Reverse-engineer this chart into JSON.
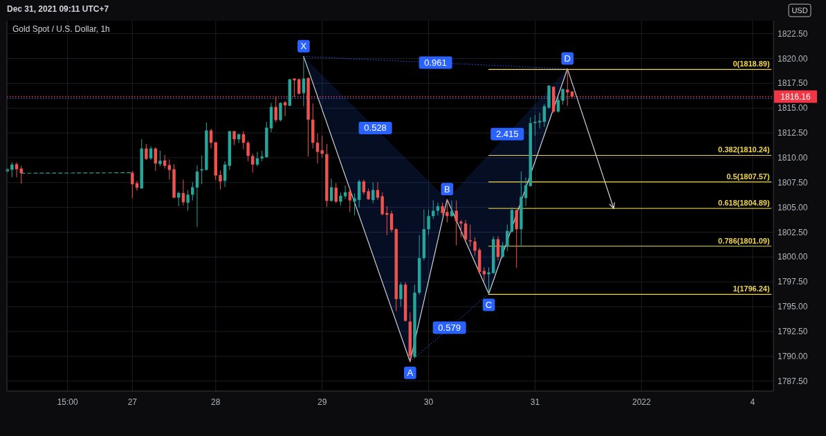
{
  "chart_data": {
    "type": "candlestick",
    "title": "Gold Spot / U.S. Dollar, 1h",
    "ylabel": "USD",
    "annotations": [
      "Dec 31, 2021 09:11 UTC+7",
      {
        "text": "X",
        "y": 1820.2
      },
      {
        "text": "A",
        "y": 1789.45
      },
      {
        "text": "B",
        "y": 1805.8
      },
      {
        "text": "C",
        "y": 1796.3
      },
      {
        "text": "D",
        "y": 1818.95
      },
      "0.961",
      "0.528",
      "0.579",
      "2.415"
    ],
    "categories": [
      null,
      null,
      null,
      null,
      null,
      null,
      null,
      null,
      null,
      null,
      null,
      null,
      null,
      "15:00",
      null,
      null,
      null,
      null,
      null,
      null,
      null,
      null,
      null,
      null,
      null,
      null,
      null,
      "27",
      null,
      null,
      null,
      null,
      null,
      null,
      null,
      null,
      null,
      null,
      null,
      null,
      null,
      null,
      null,
      null,
      null,
      "28",
      null,
      null,
      null,
      null,
      null,
      null,
      null,
      null,
      null,
      null,
      null,
      null,
      null,
      null,
      null,
      null,
      null,
      null,
      null,
      null,
      null,
      null,
      "29",
      null,
      null,
      null,
      null,
      null,
      null,
      null,
      null,
      null,
      null,
      null,
      null,
      null,
      null,
      null,
      null,
      null,
      null,
      null,
      null,
      null,
      null,
      "30",
      null,
      null,
      null,
      null,
      null,
      null,
      null,
      null,
      null,
      null,
      null,
      null,
      null,
      null,
      null,
      null,
      null,
      null,
      null,
      null,
      null,
      null,
      "31",
      null,
      null,
      null,
      null,
      null,
      null,
      null,
      null,
      null,
      null,
      null,
      null,
      null,
      null,
      null,
      null,
      null,
      null,
      null,
      null,
      null,
      null,
      "2022",
      null,
      null,
      null,
      null,
      null,
      null,
      null,
      null,
      null,
      null,
      null,
      null,
      null,
      null,
      null,
      null,
      null,
      null,
      null,
      null,
      null,
      null,
      null,
      "4",
      null,
      null,
      null,
      null
    ],
    "ohlc": [
      [
        1808.63,
        1808.98,
        1808.49,
        1808.84
      ],
      [
        1808.79,
        1809.54,
        1808.03,
        1809.31
      ],
      [
        1809.35,
        1809.54,
        1808.03,
        1808.84
      ],
      [
        1808.91,
        1809.19,
        1807.38,
        1808.44
      ],
      null,
      null,
      null,
      null,
      null,
      null,
      null,
      null,
      null,
      null,
      null,
      null,
      null,
      null,
      null,
      null,
      null,
      null,
      null,
      null,
      null,
      null,
      null,
      [
        1808.49,
        1808.68,
        1805.93,
        1807.33
      ],
      [
        1807.44,
        1807.68,
        1806.68,
        1806.98
      ],
      [
        1806.91,
        1811.86,
        1806.87,
        1810.93
      ],
      [
        1810.93,
        1811.4,
        1809.77,
        1809.88
      ],
      [
        1809.94,
        1811.16,
        1809.77,
        1810.93
      ],
      [
        1810.93,
        1811.05,
        1808.68,
        1809.42
      ],
      [
        1809.36,
        1810.7,
        1809.14,
        1809.7
      ],
      [
        1809.73,
        1810.29,
        1808.91,
        1809.19
      ],
      [
        1809.26,
        1809.82,
        1807.8,
        1808.77
      ],
      [
        1808.84,
        1809.35,
        1805.93,
        1805.98
      ],
      [
        1805.98,
        1806.59,
        1805.12,
        1806.45
      ],
      [
        1806.45,
        1807.8,
        1805.19,
        1805.52
      ],
      [
        1805.47,
        1806.75,
        1804.66,
        1806.28
      ],
      [
        1806.28,
        1807.57,
        1805.7,
        1807.03
      ],
      [
        1807.0,
        1809.24,
        1803.03,
        1808.61
      ],
      [
        1808.72,
        1810.24,
        1807.33,
        1808.84
      ],
      [
        1808.77,
        1813.56,
        1808.72,
        1812.75
      ],
      [
        1812.75,
        1812.91,
        1810.93,
        1811.51
      ],
      [
        1811.56,
        1811.56,
        1807.75,
        1808.21
      ],
      [
        1808.26,
        1808.72,
        1806.8,
        1807.61
      ],
      [
        1807.68,
        1809.66,
        1807.05,
        1809.31
      ],
      [
        1809.19,
        1812.68,
        1808.79,
        1812.68
      ],
      [
        1812.68,
        1812.68,
        1811.28,
        1811.86
      ],
      [
        1811.86,
        1812.38,
        1811.47,
        1812.38
      ],
      [
        1812.38,
        1812.68,
        1810.86,
        1811.51
      ],
      [
        1811.51,
        1811.7,
        1809.66,
        1810.19
      ],
      [
        1810.17,
        1810.4,
        1808.49,
        1809.31
      ],
      [
        1809.31,
        1810.59,
        1809.14,
        1809.94
      ],
      [
        1809.94,
        1810.7,
        1809.66,
        1810.12
      ],
      [
        1810.05,
        1813.61,
        1810.0,
        1813.03
      ],
      [
        1812.96,
        1815.52,
        1812.56,
        1815.12
      ],
      [
        1815.12,
        1816.16,
        1813.56,
        1813.79
      ],
      [
        1813.79,
        1815.59,
        1813.65,
        1815.52
      ],
      [
        1815.59,
        1815.7,
        1814.19,
        1815.28
      ],
      [
        1815.24,
        1817.91,
        1815.19,
        1817.91
      ],
      [
        1817.98,
        1817.98,
        1816.12,
        1817.79
      ],
      [
        1817.91,
        1817.98,
        1816.4,
        1816.44
      ],
      [
        1816.51,
        1820.2,
        1815.19,
        1817.98
      ],
      [
        1818.03,
        1818.1,
        1810.12,
        1813.84
      ],
      [
        1813.84,
        1815.47,
        1810.93,
        1811.51
      ],
      [
        1811.51,
        1812.45,
        1809.42,
        1810.59
      ],
      [
        1810.75,
        1812.21,
        1810.0,
        1810.4
      ],
      [
        1810.36,
        1811.4,
        1805.05,
        1805.65
      ],
      [
        1805.65,
        1807.91,
        1805.58,
        1807.03
      ],
      [
        1806.98,
        1807.45,
        1805.42,
        1805.58
      ],
      [
        1805.58,
        1806.52,
        1805.19,
        1806.17
      ],
      [
        1806.12,
        1807.22,
        1805.82,
        1806.52
      ],
      [
        1806.59,
        1806.98,
        1804.54,
        1805.7
      ],
      [
        1805.58,
        1806.4,
        1804.19,
        1805.93
      ],
      [
        1805.75,
        1807.8,
        1805.0,
        1807.61
      ],
      [
        1807.61,
        1807.8,
        1806.28,
        1806.52
      ],
      [
        1806.63,
        1806.91,
        1805.75,
        1805.82
      ],
      [
        1805.75,
        1807.52,
        1805.42,
        1806.75
      ],
      [
        1806.75,
        1807.52,
        1805.75,
        1805.98
      ],
      [
        1806.12,
        1806.52,
        1804.19,
        1804.31
      ],
      [
        1804.43,
        1805.12,
        1802.22,
        1804.26
      ],
      [
        1804.38,
        1804.66,
        1802.5,
        1802.73
      ],
      [
        1802.8,
        1802.91,
        1794.55,
        1795.76
      ],
      [
        1795.76,
        1797.45,
        1795.0,
        1797.22
      ],
      [
        1797.22,
        1797.45,
        1793.5,
        1793.57
      ],
      [
        1793.5,
        1794.43,
        1789.43,
        1790.01
      ],
      [
        1789.94,
        1797.22,
        1789.78,
        1796.41
      ],
      [
        1796.41,
        1802.22,
        1796.18,
        1799.89
      ],
      [
        1799.89,
        1804.78,
        1799.66,
        1802.8
      ],
      [
        1802.8,
        1804.78,
        1802.22,
        1804.12
      ],
      [
        1804.12,
        1805.7,
        1803.84,
        1804.66
      ],
      [
        1804.66,
        1805.47,
        1804.19,
        1805.12
      ],
      [
        1805.12,
        1805.47,
        1804.19,
        1804.43
      ],
      [
        1804.54,
        1805.82,
        1803.49,
        1804.12
      ],
      [
        1804.12,
        1805.7,
        1804.03,
        1804.66
      ],
      [
        1804.66,
        1805.7,
        1801.17,
        1803.61
      ],
      [
        1803.57,
        1803.73,
        1801.99,
        1803.38
      ],
      [
        1803.38,
        1803.73,
        1801.52,
        1801.75
      ],
      [
        1801.68,
        1803.26,
        1801.05,
        1801.57
      ],
      [
        1801.57,
        1801.99,
        1800.12,
        1800.63
      ],
      [
        1800.71,
        1800.94,
        1798.31,
        1798.5
      ],
      [
        1798.61,
        1798.96,
        1797.57,
        1798.26
      ],
      [
        1798.26,
        1798.96,
        1796.3,
        1798.45
      ],
      [
        1798.38,
        1802.1,
        1798.31,
        1801.8
      ],
      [
        1801.8,
        1802.1,
        1799.66,
        1800.01
      ],
      [
        1800.01,
        1801.52,
        1799.89,
        1801.17
      ],
      [
        1801.05,
        1803.26,
        1800.59,
        1802.63
      ],
      [
        1802.56,
        1805.0,
        1802.45,
        1804.73
      ],
      [
        1804.73,
        1804.78,
        1798.92,
        1802.8
      ],
      [
        1802.8,
        1808.61,
        1801.05,
        1806.05
      ],
      [
        1805.93,
        1808.03,
        1805.12,
        1807.22
      ],
      [
        1807.15,
        1814.07,
        1807.1,
        1813.49
      ],
      [
        1813.49,
        1814.3,
        1812.21,
        1813.61
      ],
      [
        1813.56,
        1814.54,
        1812.96,
        1813.72
      ],
      [
        1813.61,
        1815.42,
        1813.1,
        1815.19
      ],
      [
        1815.05,
        1817.33,
        1814.96,
        1817.26
      ],
      [
        1817.14,
        1817.21,
        1814.54,
        1814.65
      ],
      [
        1814.65,
        1816.16,
        1814.54,
        1815.82
      ],
      [
        1815.75,
        1816.98,
        1815.35,
        1816.91
      ],
      [
        1816.86,
        1818.95,
        1815.24,
        1816.58
      ],
      [
        1816.67,
        1816.74,
        1816.05,
        1816.16
      ],
      null,
      null,
      null,
      null,
      null,
      null,
      null,
      null,
      null,
      null,
      null,
      null,
      null,
      null,
      null,
      null,
      null,
      null,
      null,
      null,
      null,
      null,
      null,
      null,
      null,
      null,
      null,
      null,
      null,
      null,
      null,
      null,
      null,
      null,
      null,
      null,
      null,
      null,
      null,
      null,
      null,
      null,
      null
    ],
    "colors": [
      "#26a69a",
      "#26a69a",
      "#ef5350",
      "#ef5350",
      null,
      null,
      null,
      null,
      null,
      null,
      null,
      null,
      null,
      null,
      null,
      null,
      null,
      null,
      null,
      null,
      null,
      null,
      null,
      null,
      null,
      null,
      null,
      "#ef5350",
      "#ef5350",
      "#26a69a",
      "#ef5350",
      "#26a69a",
      "#ef5350",
      "#26a69a",
      "#ef5350",
      "#ef5350",
      "#ef5350",
      "#26a69a",
      "#ef5350",
      "#26a69a",
      "#26a69a",
      "#26a69a",
      "#26a69a",
      "#26a69a",
      "#ef5350",
      "#ef5350",
      "#ef5350",
      "#26a69a",
      "#26a69a",
      "#ef5350",
      "#26a69a",
      "#ef5350",
      "#ef5350",
      "#ef5350",
      "#26a69a",
      "#26a69a",
      "#26a69a",
      "#26a69a",
      "#ef5350",
      "#26a69a",
      "#ef5350",
      "#26a69a",
      "#ef5350",
      "#ef5350",
      "#26a69a",
      "#ef5350",
      "#ef5350",
      "#ef5350",
      "#ef5350",
      "#ef5350",
      "#26a69a",
      "#ef5350",
      "#26a69a",
      "#26a69a",
      "#ef5350",
      "#26a69a",
      "#26a69a",
      "#ef5350",
      "#ef5350",
      "#26a69a",
      "#ef5350",
      "#ef5350",
      "#ef5350",
      "#ef5350",
      "#ef5350",
      "#26a69a",
      "#ef5350",
      "#ef5350",
      "#26a69a",
      "#26a69a",
      "#26a69a",
      "#26a69a",
      "#26a69a",
      "#26a69a",
      "#ef5350",
      "#ef5350",
      "#26a69a",
      "#ef5350",
      "#ef5350",
      "#ef5350",
      "#ef5350",
      "#ef5350",
      "#ef5350",
      "#ef5350",
      "#26a69a",
      "#26a69a",
      "#ef5350",
      "#26a69a",
      "#26a69a",
      "#26a69a",
      "#ef5350",
      "#26a69a",
      "#26a69a",
      "#26a69a",
      "#26a69a",
      "#26a69a",
      "#26a69a",
      "#26a69a",
      "#ef5350",
      "#26a69a",
      "#26a69a",
      "#ef5350",
      "#ef5350",
      null,
      null,
      null,
      null,
      null,
      null,
      null,
      null,
      null,
      null,
      null,
      null,
      null,
      null,
      null,
      null,
      null,
      null,
      null,
      null,
      null,
      null,
      null,
      null,
      null,
      null,
      null,
      null,
      null,
      null,
      null,
      null,
      null,
      null,
      null,
      null,
      null,
      null,
      null,
      null,
      null,
      null,
      null
    ],
    "series": [
      {
        "type": "line",
        "color": "#26a69a",
        "line_style": "dashed",
        "values": [
          null,
          null,
          null,
          1808.44,
          null,
          null,
          null,
          null,
          null,
          null,
          null,
          null,
          null,
          null,
          null,
          null,
          null,
          null,
          null,
          null,
          null,
          null,
          null,
          null,
          null,
          null,
          null,
          1808.49,
          null,
          null,
          null,
          null,
          null,
          null,
          null,
          null,
          null,
          null,
          null,
          null,
          null,
          null,
          null,
          null,
          null,
          null,
          null,
          null,
          null,
          null,
          null,
          null,
          null,
          null,
          null,
          null,
          null,
          null,
          null,
          null,
          null,
          null,
          null,
          null,
          null,
          null,
          null,
          null,
          null,
          null,
          null,
          null,
          null,
          null,
          null,
          null,
          null,
          null,
          null,
          null,
          null,
          null,
          null,
          null,
          null,
          null,
          null,
          null,
          null,
          null,
          null,
          null,
          null,
          null,
          null,
          null,
          null,
          null,
          null,
          null,
          null,
          null,
          null,
          null,
          null,
          null,
          null,
          null,
          null,
          null,
          null,
          null,
          null,
          null,
          null,
          null,
          null,
          null,
          null,
          null,
          null,
          null,
          null,
          null,
          null,
          null,
          null,
          null,
          null,
          null,
          null,
          null,
          null,
          null,
          null,
          null,
          null,
          null,
          null,
          null,
          null,
          null,
          null,
          null,
          null,
          null,
          null,
          null,
          null,
          null,
          null,
          null,
          null,
          null,
          null,
          null,
          null,
          null,
          null,
          null,
          null,
          null,
          null,
          null,
          null,
          null
        ]
      },
      {
        "type": "line",
        "color": "#d1d4dc",
        "values": [
          null,
          null,
          null,
          null,
          null,
          null,
          null,
          null,
          null,
          null,
          null,
          null,
          null,
          null,
          null,
          null,
          null,
          null,
          null,
          null,
          null,
          null,
          null,
          null,
          null,
          null,
          null,
          null,
          null,
          null,
          null,
          null,
          null,
          null,
          null,
          null,
          null,
          null,
          null,
          null,
          null,
          null,
          null,
          null,
          null,
          null,
          null,
          null,
          null,
          null,
          null,
          null,
          null,
          null,
          null,
          null,
          null,
          null,
          null,
          null,
          null,
          null,
          null,
          null,
          1820.2,
          null,
          null,
          null,
          null,
          null,
          null,
          null,
          null,
          null,
          null,
          null,
          null,
          null,
          null,
          null,
          null,
          null,
          null,
          null,
          null,
          null,
          null,
          1789.45,
          null,
          null,
          null,
          null,
          null,
          null,
          null,
          1805.8,
          null,
          null,
          null,
          null,
          null,
          null,
          null,
          null,
          1796.3,
          null,
          null,
          null,
          null,
          null,
          null,
          null,
          null,
          null,
          null,
          null,
          null,
          null,
          null,
          null,
          null,
          1818.95,
          null,
          null,
          null,
          null,
          null,
          null,
          null,
          null,
          null,
          null,
          null,
          null,
          null,
          null,
          null,
          null,
          null,
          null,
          null,
          null,
          null,
          null,
          null,
          null,
          null,
          null,
          null,
          null,
          null,
          null,
          null,
          null,
          null,
          null,
          null,
          null,
          null,
          null,
          null,
          null,
          null,
          null,
          null,
          null
        ]
      },
      {
        "type": "line",
        "name": "0(1818.89)",
        "color": "#f0d84a",
        "values": [
          null,
          null,
          null,
          null,
          null,
          null,
          null,
          null,
          null,
          null,
          null,
          null,
          null,
          null,
          null,
          null,
          null,
          null,
          null,
          null,
          null,
          null,
          null,
          null,
          null,
          null,
          null,
          null,
          null,
          null,
          null,
          null,
          null,
          null,
          null,
          null,
          null,
          null,
          null,
          null,
          null,
          null,
          null,
          null,
          null,
          null,
          null,
          null,
          null,
          null,
          null,
          null,
          null,
          null,
          null,
          null,
          null,
          null,
          null,
          null,
          null,
          null,
          null,
          null,
          null,
          null,
          null,
          null,
          null,
          null,
          null,
          null,
          null,
          null,
          null,
          null,
          null,
          null,
          null,
          null,
          null,
          null,
          null,
          null,
          null,
          null,
          null,
          null,
          null,
          null,
          null,
          null,
          null,
          null,
          null,
          null,
          null,
          null,
          null,
          null,
          null,
          null,
          null,
          null,
          1818.89,
          null,
          null,
          null,
          null,
          null,
          null,
          null,
          null,
          null,
          null,
          null,
          null,
          null,
          null,
          null,
          null,
          null,
          null,
          null,
          null,
          null,
          null,
          null,
          null,
          null,
          null,
          null,
          null,
          null,
          null,
          null,
          null,
          null,
          null,
          null,
          null,
          null,
          null,
          null,
          null,
          null,
          null,
          null,
          null,
          null,
          null,
          null,
          null,
          null,
          null,
          null,
          null,
          null,
          null,
          null,
          null,
          null,
          null,
          null,
          null,
          1818.89
        ]
      },
      {
        "type": "line",
        "name": "0.382(1810.24)",
        "color": "#f0d84a",
        "values": [
          null,
          null,
          null,
          null,
          null,
          null,
          null,
          null,
          null,
          null,
          null,
          null,
          null,
          null,
          null,
          null,
          null,
          null,
          null,
          null,
          null,
          null,
          null,
          null,
          null,
          null,
          null,
          null,
          null,
          null,
          null,
          null,
          null,
          null,
          null,
          null,
          null,
          null,
          null,
          null,
          null,
          null,
          null,
          null,
          null,
          null,
          null,
          null,
          null,
          null,
          null,
          null,
          null,
          null,
          null,
          null,
          null,
          null,
          null,
          null,
          null,
          null,
          null,
          null,
          null,
          null,
          null,
          null,
          null,
          null,
          null,
          null,
          null,
          null,
          null,
          null,
          null,
          null,
          null,
          null,
          null,
          null,
          null,
          null,
          null,
          null,
          null,
          null,
          null,
          null,
          null,
          null,
          null,
          null,
          null,
          null,
          null,
          null,
          null,
          null,
          null,
          null,
          null,
          null,
          1810.24,
          null,
          null,
          null,
          null,
          null,
          null,
          null,
          null,
          null,
          null,
          null,
          null,
          null,
          null,
          null,
          null,
          null,
          null,
          null,
          null,
          null,
          null,
          null,
          null,
          null,
          null,
          null,
          null,
          null,
          null,
          null,
          null,
          null,
          null,
          null,
          null,
          null,
          null,
          null,
          null,
          null,
          null,
          null,
          null,
          null,
          null,
          null,
          null,
          null,
          null,
          null,
          null,
          null,
          null,
          null,
          null,
          null,
          null,
          null,
          null,
          1810.24
        ]
      },
      {
        "type": "line",
        "name": "0.5(1807.57)",
        "color": "#f0d84a",
        "values": [
          null,
          null,
          null,
          null,
          null,
          null,
          null,
          null,
          null,
          null,
          null,
          null,
          null,
          null,
          null,
          null,
          null,
          null,
          null,
          null,
          null,
          null,
          null,
          null,
          null,
          null,
          null,
          null,
          null,
          null,
          null,
          null,
          null,
          null,
          null,
          null,
          null,
          null,
          null,
          null,
          null,
          null,
          null,
          null,
          null,
          null,
          null,
          null,
          null,
          null,
          null,
          null,
          null,
          null,
          null,
          null,
          null,
          null,
          null,
          null,
          null,
          null,
          null,
          null,
          null,
          null,
          null,
          null,
          null,
          null,
          null,
          null,
          null,
          null,
          null,
          null,
          null,
          null,
          null,
          null,
          null,
          null,
          null,
          null,
          null,
          null,
          null,
          null,
          null,
          null,
          null,
          null,
          null,
          null,
          null,
          null,
          null,
          null,
          null,
          null,
          null,
          null,
          null,
          null,
          1807.57,
          null,
          null,
          null,
          null,
          null,
          null,
          null,
          null,
          null,
          null,
          null,
          null,
          null,
          null,
          null,
          null,
          null,
          null,
          null,
          null,
          null,
          null,
          null,
          null,
          null,
          null,
          null,
          null,
          null,
          null,
          null,
          null,
          null,
          null,
          null,
          null,
          null,
          null,
          null,
          null,
          null,
          null,
          null,
          null,
          null,
          null,
          null,
          null,
          null,
          null,
          null,
          null,
          null,
          null,
          null,
          null,
          null,
          null,
          null,
          null,
          1807.57
        ]
      },
      {
        "type": "line",
        "name": "0.618(1804.89)",
        "color": "#f0d84a",
        "values": [
          null,
          null,
          null,
          null,
          null,
          null,
          null,
          null,
          null,
          null,
          null,
          null,
          null,
          null,
          null,
          null,
          null,
          null,
          null,
          null,
          null,
          null,
          null,
          null,
          null,
          null,
          null,
          null,
          null,
          null,
          null,
          null,
          null,
          null,
          null,
          null,
          null,
          null,
          null,
          null,
          null,
          null,
          null,
          null,
          null,
          null,
          null,
          null,
          null,
          null,
          null,
          null,
          null,
          null,
          null,
          null,
          null,
          null,
          null,
          null,
          null,
          null,
          null,
          null,
          null,
          null,
          null,
          null,
          null,
          null,
          null,
          null,
          null,
          null,
          null,
          null,
          null,
          null,
          null,
          null,
          null,
          null,
          null,
          null,
          null,
          null,
          null,
          null,
          null,
          null,
          null,
          null,
          null,
          null,
          null,
          null,
          null,
          null,
          null,
          null,
          null,
          null,
          null,
          null,
          1804.89,
          null,
          null,
          null,
          null,
          null,
          null,
          null,
          null,
          null,
          null,
          null,
          null,
          null,
          null,
          null,
          null,
          null,
          null,
          null,
          null,
          null,
          null,
          null,
          null,
          null,
          null,
          null,
          null,
          null,
          null,
          null,
          null,
          null,
          null,
          null,
          null,
          null,
          null,
          null,
          null,
          null,
          null,
          null,
          null,
          null,
          null,
          null,
          null,
          null,
          null,
          null,
          null,
          null,
          null,
          null,
          null,
          null,
          null,
          null,
          null,
          1804.89
        ]
      },
      {
        "type": "line",
        "name": "0.786(1801.09)",
        "color": "#f0d84a",
        "values": [
          null,
          null,
          null,
          null,
          null,
          null,
          null,
          null,
          null,
          null,
          null,
          null,
          null,
          null,
          null,
          null,
          null,
          null,
          null,
          null,
          null,
          null,
          null,
          null,
          null,
          null,
          null,
          null,
          null,
          null,
          null,
          null,
          null,
          null,
          null,
          null,
          null,
          null,
          null,
          null,
          null,
          null,
          null,
          null,
          null,
          null,
          null,
          null,
          null,
          null,
          null,
          null,
          null,
          null,
          null,
          null,
          null,
          null,
          null,
          null,
          null,
          null,
          null,
          null,
          null,
          null,
          null,
          null,
          null,
          null,
          null,
          null,
          null,
          null,
          null,
          null,
          null,
          null,
          null,
          null,
          null,
          null,
          null,
          null,
          null,
          null,
          null,
          null,
          null,
          null,
          null,
          null,
          null,
          null,
          null,
          null,
          null,
          null,
          null,
          null,
          null,
          null,
          null,
          null,
          1801.09,
          null,
          null,
          null,
          null,
          null,
          null,
          null,
          null,
          null,
          null,
          null,
          null,
          null,
          null,
          null,
          null,
          null,
          null,
          null,
          null,
          null,
          null,
          null,
          null,
          null,
          null,
          null,
          null,
          null,
          null,
          null,
          null,
          null,
          null,
          null,
          null,
          null,
          null,
          null,
          null,
          null,
          null,
          null,
          null,
          null,
          null,
          null,
          null,
          null,
          null,
          null,
          null,
          null,
          null,
          null,
          null,
          null,
          null,
          null,
          null,
          1801.09
        ]
      },
      {
        "type": "line",
        "name": "1(1796.24)",
        "color": "#f0d84a",
        "values": [
          null,
          null,
          null,
          null,
          null,
          null,
          null,
          null,
          null,
          null,
          null,
          null,
          null,
          null,
          null,
          null,
          null,
          null,
          null,
          null,
          null,
          null,
          null,
          null,
          null,
          null,
          null,
          null,
          null,
          null,
          null,
          null,
          null,
          null,
          null,
          null,
          null,
          null,
          null,
          null,
          null,
          null,
          null,
          null,
          null,
          null,
          null,
          null,
          null,
          null,
          null,
          null,
          null,
          null,
          null,
          null,
          null,
          null,
          null,
          null,
          null,
          null,
          null,
          null,
          null,
          null,
          null,
          null,
          null,
          null,
          null,
          null,
          null,
          null,
          null,
          null,
          null,
          null,
          null,
          null,
          null,
          null,
          null,
          null,
          null,
          null,
          null,
          null,
          null,
          null,
          null,
          null,
          null,
          null,
          null,
          null,
          null,
          null,
          null,
          null,
          null,
          null,
          null,
          null,
          1796.24,
          null,
          null,
          null,
          null,
          null,
          null,
          null,
          null,
          null,
          null,
          null,
          null,
          null,
          null,
          null,
          null,
          null,
          null,
          null,
          null,
          null,
          null,
          null,
          null,
          null,
          null,
          null,
          null,
          null,
          null,
          null,
          null,
          null,
          null,
          null,
          null,
          null,
          null,
          null,
          null,
          null,
          null,
          null,
          null,
          null,
          null,
          null,
          null,
          null,
          null,
          null,
          null,
          null,
          null,
          null,
          null,
          null,
          null,
          null,
          null,
          1796.24
        ]
      }
    ],
    "ref_lines": [
      {
        "axis": "y",
        "value": 1816.16,
        "label": "1816.16",
        "color": "#f23645",
        "line_style": "dotted"
      },
      {
        "axis": "y",
        "value": 1815.98,
        "color": "#5d6fd8",
        "line_style": "dotted"
      }
    ],
    "ylim": [
      1786.5,
      1823.8
    ],
    "yticks": [
      {
        "value": 1787.5,
        "label": "1787.50"
      },
      {
        "value": 1790,
        "label": "1790.00"
      },
      {
        "value": 1792.5,
        "label": "1792.50"
      },
      {
        "value": 1795,
        "label": "1795.00"
      },
      {
        "value": 1797.5,
        "label": "1797.50"
      },
      {
        "value": 1800,
        "label": "1800.00"
      },
      {
        "value": 1802.5,
        "label": "1802.50"
      },
      {
        "value": 1805,
        "label": "1805.00"
      },
      {
        "value": 1807.5,
        "label": "1807.50"
      },
      {
        "value": 1810,
        "label": "1810.00"
      },
      {
        "value": 1812.5,
        "label": "1812.50"
      },
      {
        "value": 1815,
        "label": "1815.00"
      },
      {
        "value": 1817.5,
        "label": "1817.50"
      },
      {
        "value": 1820,
        "label": "1820.00"
      },
      {
        "value": 1822.5,
        "label": "1822.50"
      }
    ],
    "grid": true,
    "legend": false
  }
}
